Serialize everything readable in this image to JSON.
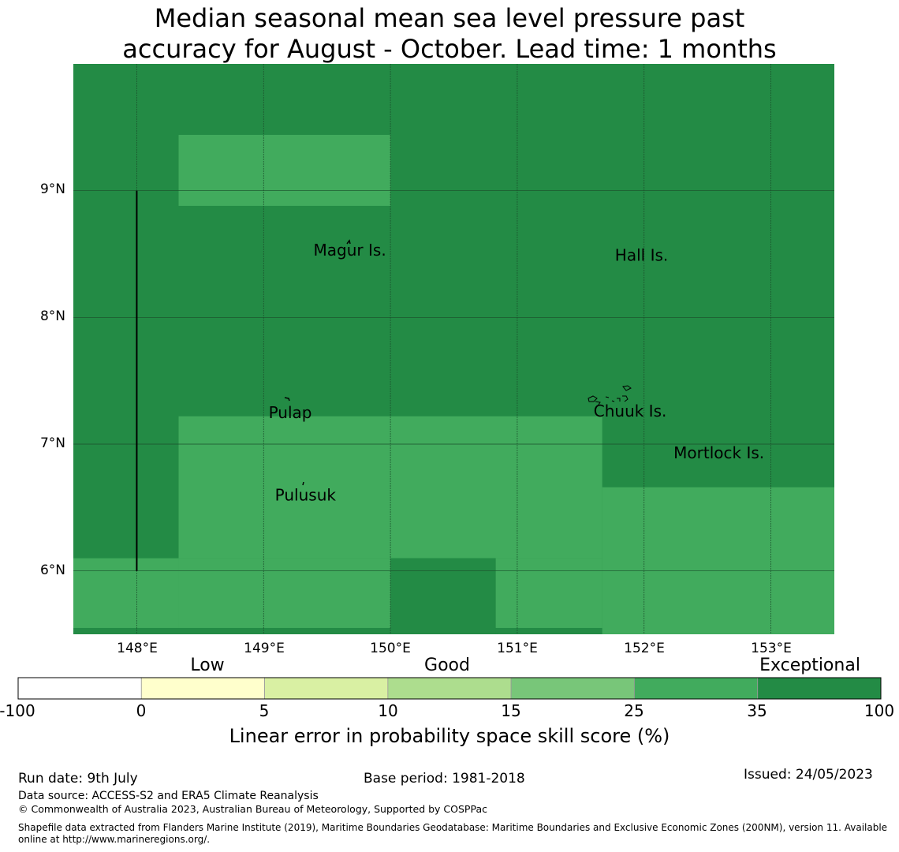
{
  "title_lines": [
    "Median seasonal mean sea level pressure past",
    "accuracy for August - October. Lead time: 1 months"
  ],
  "map": {
    "lon_range": [
      147.5,
      153.5
    ],
    "lat_range": [
      5.5,
      10.0
    ],
    "lon_ticks": [
      "148°E",
      "149°E",
      "150°E",
      "151°E",
      "152°E",
      "153°E"
    ],
    "lat_ticks": [
      "9°N",
      "8°N",
      "7°N",
      "6°N"
    ],
    "grid": true,
    "background_color": "#238b45",
    "cells": [
      {
        "lon": [
          148.33,
          150.0
        ],
        "lat": [
          8.88,
          9.44
        ],
        "category": "25-35"
      },
      {
        "lon": [
          148.33,
          151.67
        ],
        "lat": [
          6.1,
          7.22
        ],
        "category": "25-35"
      },
      {
        "lon": [
          151.67,
          153.5
        ],
        "lat": [
          5.5,
          6.66
        ],
        "category": "25-35"
      },
      {
        "lon": [
          147.5,
          148.33
        ],
        "lat": [
          5.55,
          6.1
        ],
        "category": "25-35"
      },
      {
        "lon": [
          148.33,
          150.0
        ],
        "lat": [
          5.55,
          6.1
        ],
        "category": "25-35"
      },
      {
        "lon": [
          150.83,
          151.67
        ],
        "lat": [
          5.55,
          6.1
        ],
        "category": "25-35"
      },
      {
        "lon": [
          150.0,
          150.83
        ],
        "lat": [
          5.5,
          6.1
        ],
        "category": "35-100"
      }
    ],
    "places": [
      {
        "name": "Magur Is.",
        "lon": 149.68,
        "lat": 8.53
      },
      {
        "name": "Hall Is.",
        "lon": 151.98,
        "lat": 8.49
      },
      {
        "name": "Pulap",
        "lon": 149.21,
        "lat": 7.25
      },
      {
        "name": "Chuuk Is.",
        "lon": 151.89,
        "lat": 7.26
      },
      {
        "name": "Mortlock Is.",
        "lon": 152.59,
        "lat": 6.93
      },
      {
        "name": "Pulusuk",
        "lon": 149.33,
        "lat": 6.6
      }
    ],
    "boundary_line": {
      "lon": 148.0,
      "lat": [
        6.0,
        9.0
      ]
    }
  },
  "colorbar": {
    "categories": [
      "Low",
      "Good",
      "Exceptional"
    ],
    "ticks": [
      "-100",
      "0",
      "5",
      "10",
      "15",
      "25",
      "35",
      "100"
    ],
    "colors": [
      "#ffffff",
      "#ffffcc",
      "#d9f0a3",
      "#addd8e",
      "#78c679",
      "#41ab5d",
      "#238b45"
    ],
    "label": "Linear error in probability space skill score (%)"
  },
  "footer": {
    "run_date": "Run date: 9th July",
    "base_period": "Base period: 1981-2018",
    "issued": "Issued: 24/05/2023",
    "data_source": "Data source: ACCESS-S2 and ERA5 Climate Reanalysis",
    "copyright": "© Commonwealth of Australia 2023, Australian Bureau of Meteorology, Supported by COSPPac",
    "shapefile_line1": "Shapefile data extracted from Flanders Marine Institute (2019), Maritime Boundaries Geodatabase: Maritime Boundaries and Exclusive Economic Zones (200NM), version 11. Available",
    "shapefile_line2": "online at http://www.marineregions.org/."
  }
}
